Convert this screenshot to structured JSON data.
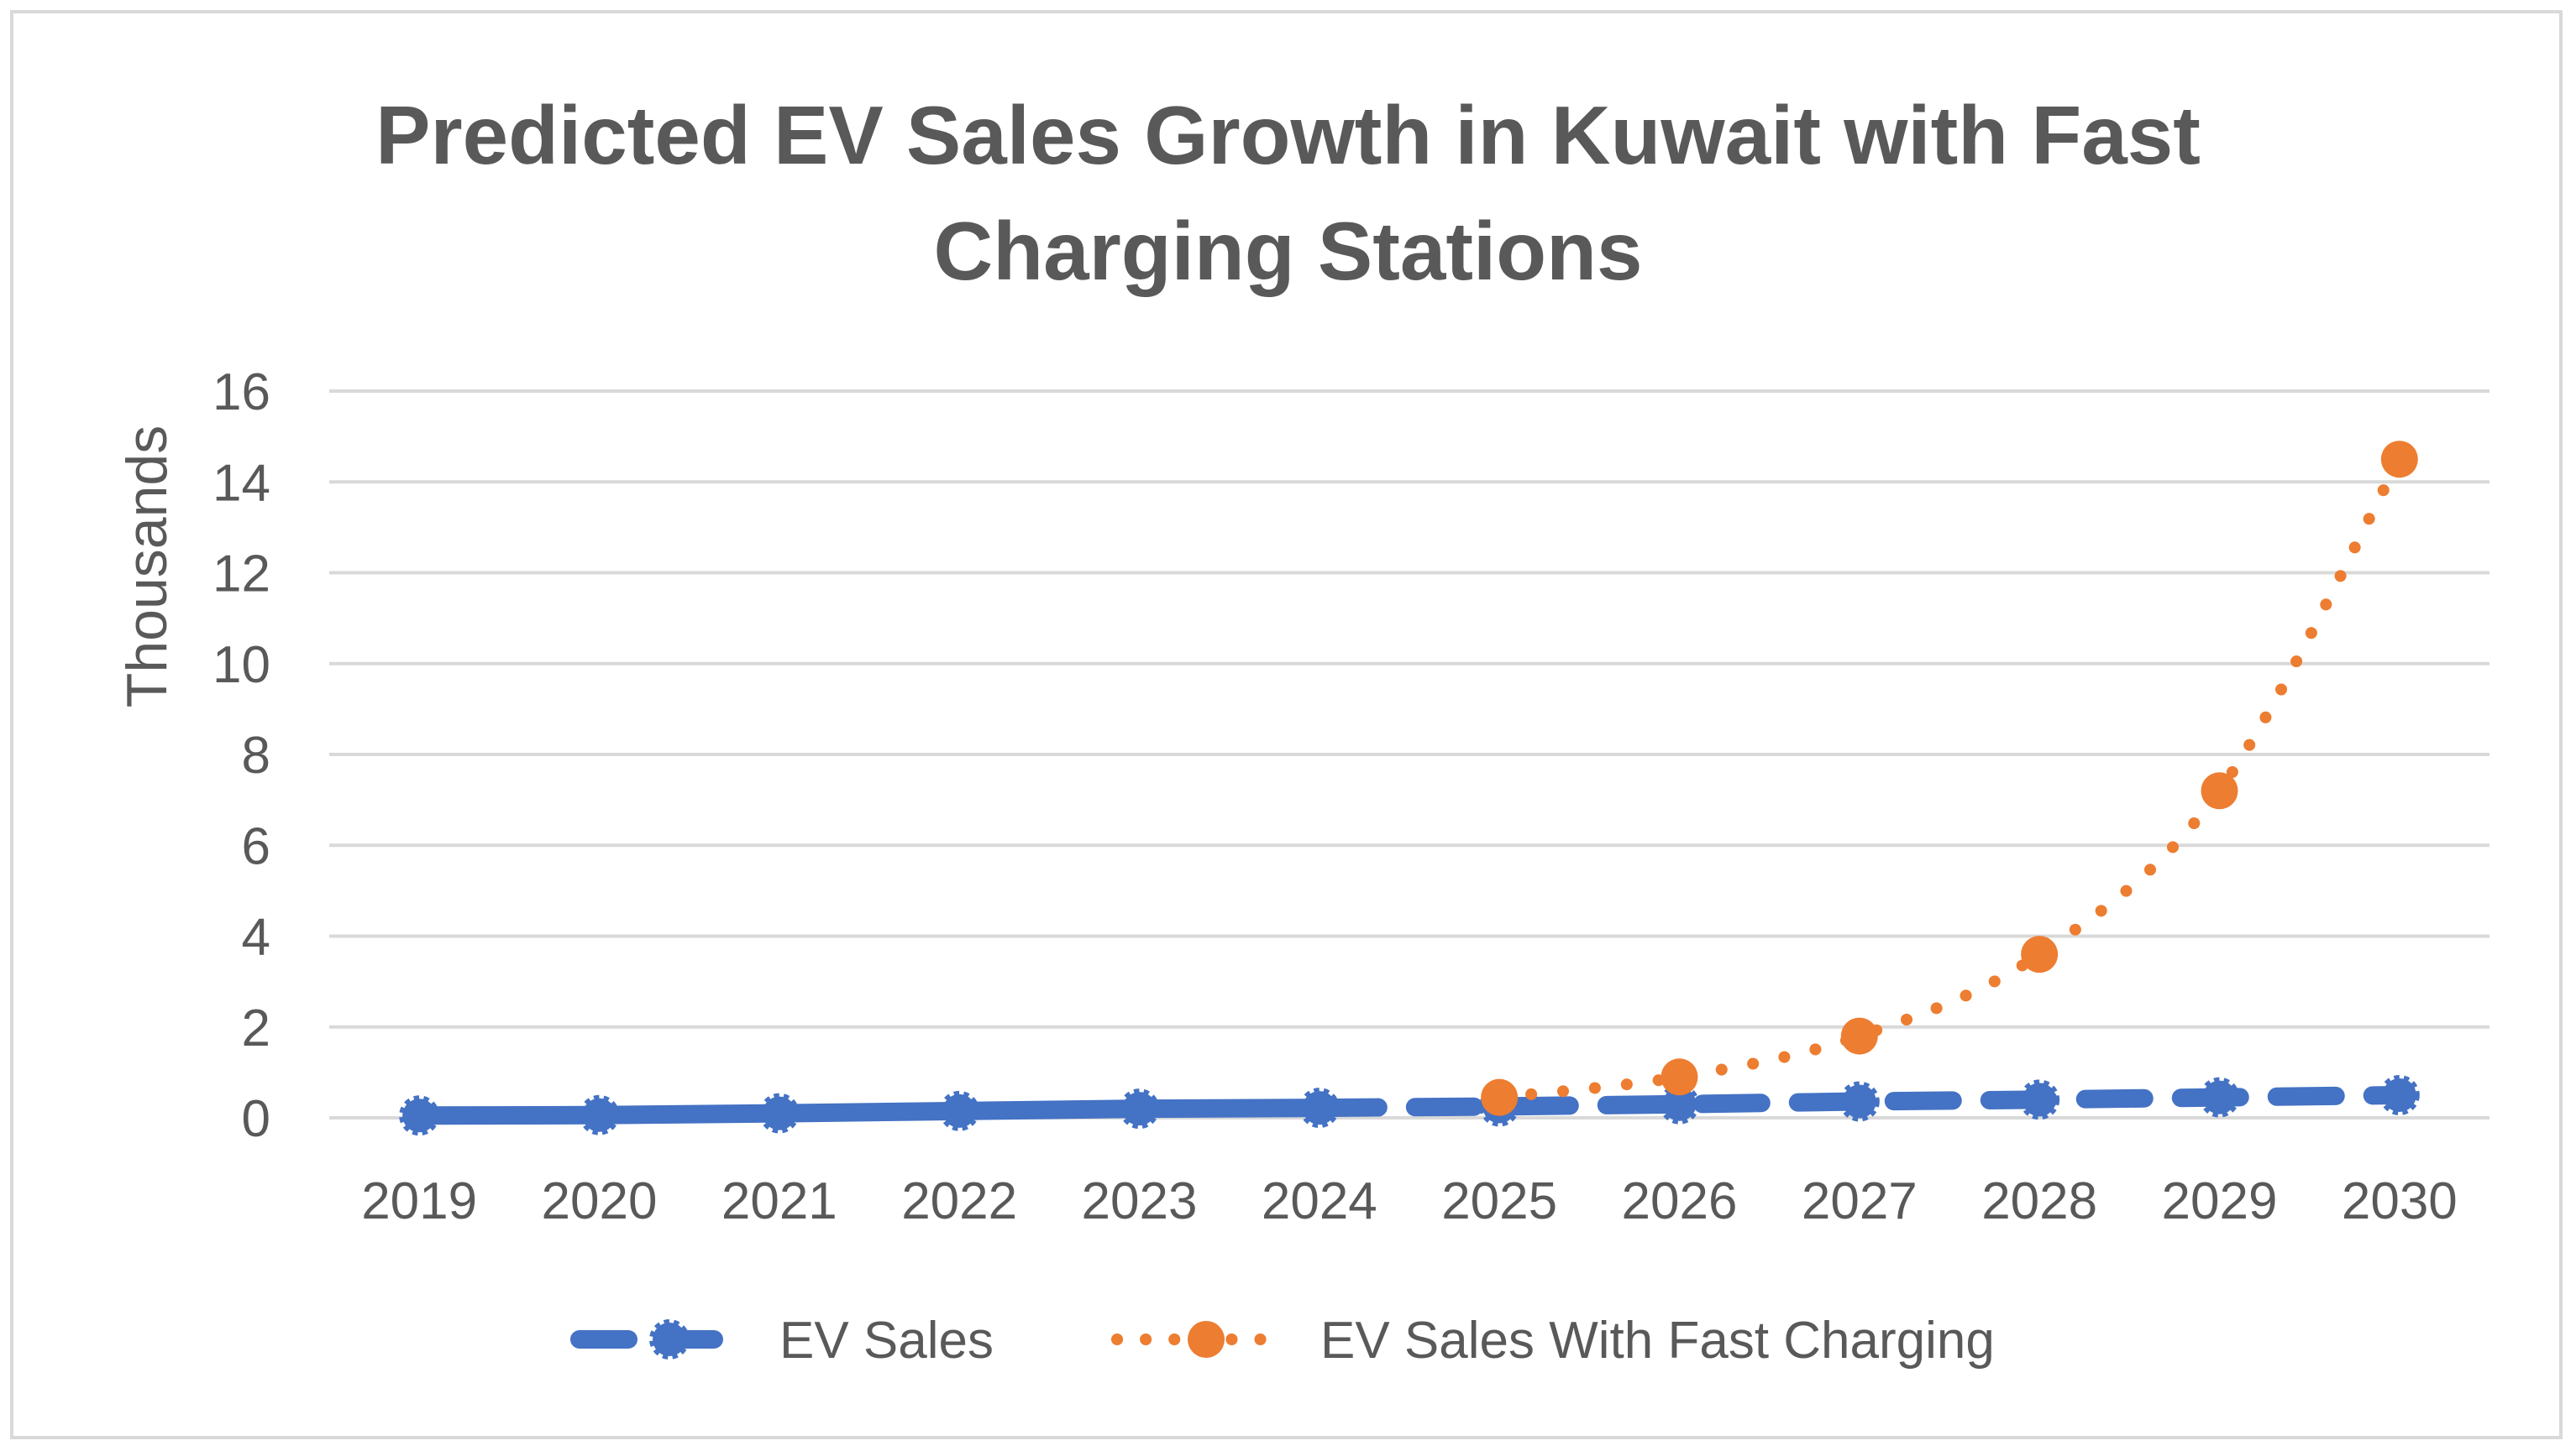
{
  "chart_data": {
    "type": "line",
    "title_lines": [
      "Predicted EV Sales Growth in Kuwait with Fast",
      "Charging Stations"
    ],
    "ylabel": "Thousands",
    "xlabel": "",
    "ylim": [
      0,
      16
    ],
    "yticks": [
      0,
      2,
      4,
      6,
      8,
      10,
      12,
      14,
      16
    ],
    "categories": [
      "2019",
      "2020",
      "2021",
      "2022",
      "2023",
      "2024",
      "2025",
      "2026",
      "2027",
      "2028",
      "2029",
      "2030"
    ],
    "series": [
      {
        "name": "EV Sales",
        "color": "#4472c4",
        "style": "solid through 2024, dashed projection after",
        "values": [
          0.05,
          0.06,
          0.1,
          0.15,
          0.2,
          0.22,
          0.25,
          0.3,
          0.36,
          0.4,
          0.45,
          0.5
        ]
      },
      {
        "name": "EV Sales With Fast Charging",
        "color": "#ed7d31",
        "style": "dotted",
        "values": [
          null,
          null,
          null,
          null,
          null,
          null,
          0.45,
          0.9,
          1.8,
          3.6,
          7.2,
          14.5
        ]
      }
    ],
    "legend_position": "bottom",
    "grid": "horizontal"
  }
}
